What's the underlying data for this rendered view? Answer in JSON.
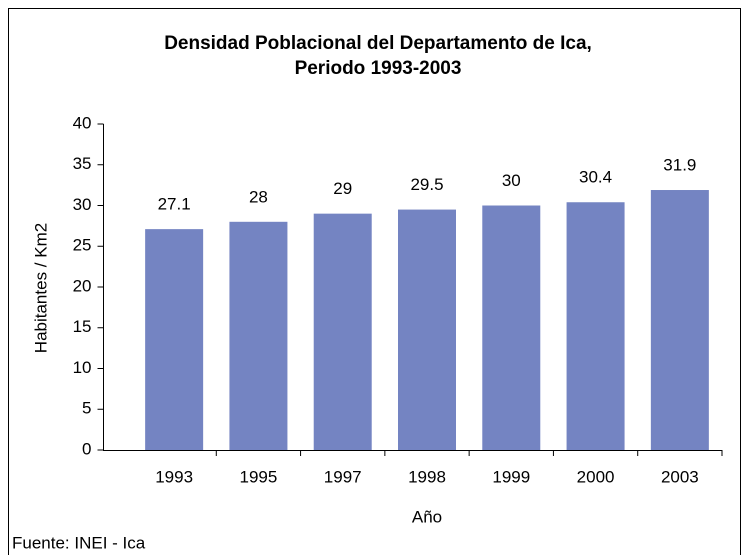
{
  "chart_data": {
    "type": "bar",
    "title": [
      "Densidad Poblacional del Departamento de Ica,",
      "Periodo 1993-2003"
    ],
    "categories": [
      "1993",
      "1995",
      "1997",
      "1998",
      "1999",
      "2000",
      "2003"
    ],
    "values": [
      27.1,
      28,
      29,
      29.5,
      30,
      30.4,
      31.9
    ],
    "color": "#7484c2",
    "ylim": [
      0,
      40
    ],
    "yticks": [
      0,
      5,
      10,
      15,
      20,
      25,
      30,
      35,
      40
    ],
    "x_label": "Año",
    "y_label": "Habitantes / Km2",
    "source": "Fuente: INEI - Ica"
  }
}
